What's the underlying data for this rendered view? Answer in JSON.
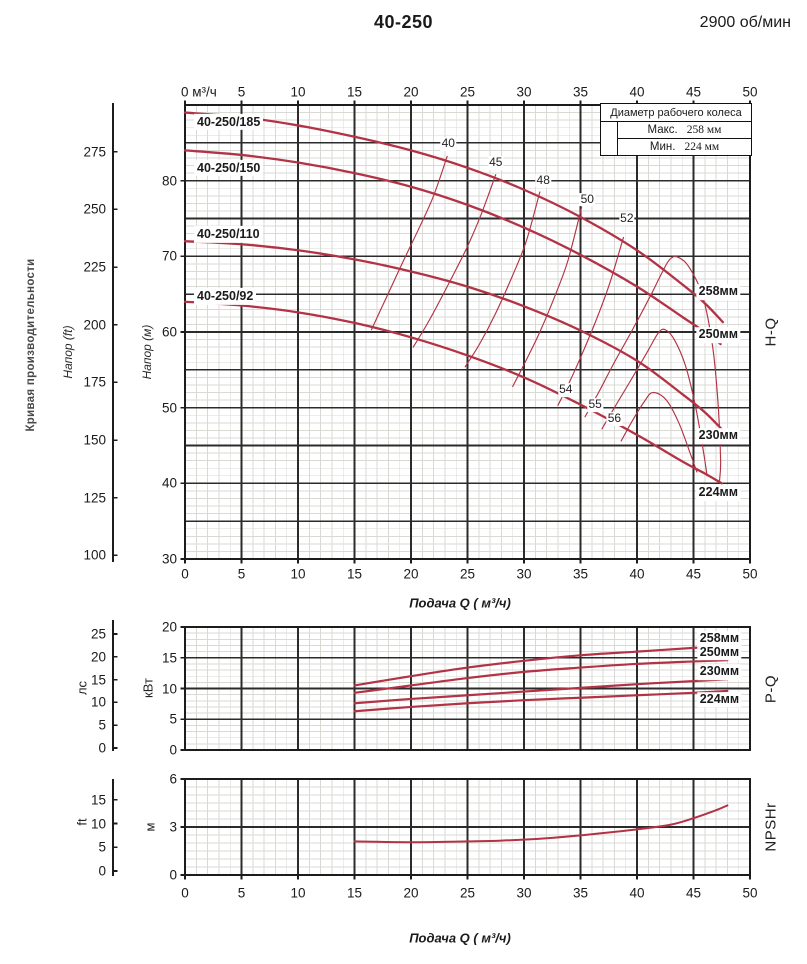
{
  "header": {
    "title": "40-250",
    "rpm": "2900 об/мин"
  },
  "colors": {
    "curve_red": "#b23345",
    "grid_major": "#2b2b2b",
    "grid_minor": "#dadad5",
    "text": "#1a1a1a"
  },
  "chart_data": {
    "main": {
      "type": "line",
      "right_label": "H-Q",
      "side_label": "Кривая производительности",
      "x_range": [
        0,
        50
      ],
      "y_range_m": [
        30,
        90
      ],
      "x_axis_top": {
        "zero_label": "0 м³/ч",
        "ticks": [
          0,
          5,
          10,
          15,
          20,
          25,
          30,
          35,
          40,
          45,
          50
        ]
      },
      "x_axis_bottom": {
        "title": "Подача Q ( м³/ч)",
        "ticks": [
          0,
          5,
          10,
          15,
          20,
          25,
          30,
          35,
          40,
          45,
          50
        ]
      },
      "y_axis_ft": {
        "title": "Напор (ft)",
        "ticks": [
          275,
          250,
          225,
          200,
          175,
          150,
          125,
          100
        ]
      },
      "y_axis_m": {
        "title": "Напор (м)",
        "ticks": [
          80,
          70,
          60,
          50,
          40,
          30
        ]
      },
      "legend": {
        "title": "Диаметр рабочего колеса",
        "rows": [
          {
            "label": "Макс.",
            "value": "258 мм"
          },
          {
            "label": "Мин.",
            "value": "224 мм"
          }
        ]
      },
      "curves": [
        {
          "name": "40-250/185",
          "diameter": "258мм",
          "label_pos": [
            0.8,
            87.8
          ],
          "dia_label_pos": [
            47.2,
            65.3
          ],
          "points": [
            [
              0,
              89
            ],
            [
              5,
              88.4
            ],
            [
              10,
              87.3
            ],
            [
              15,
              85.8
            ],
            [
              20,
              84
            ],
            [
              25,
              81.7
            ],
            [
              30,
              78.8
            ],
            [
              35,
              75.2
            ],
            [
              40,
              70.8
            ],
            [
              44,
              66.3
            ],
            [
              46,
              63.8
            ],
            [
              47.6,
              61.3
            ]
          ]
        },
        {
          "name": "40-250/150",
          "diameter": "250мм",
          "label_pos": [
            0.8,
            81.7
          ],
          "dia_label_pos": [
            47.2,
            59.6
          ],
          "points": [
            [
              0,
              84
            ],
            [
              5,
              83.4
            ],
            [
              10,
              82.4
            ],
            [
              15,
              81
            ],
            [
              20,
              79.2
            ],
            [
              25,
              76.8
            ],
            [
              30,
              73.8
            ],
            [
              35,
              70.2
            ],
            [
              40,
              66
            ],
            [
              44,
              62
            ],
            [
              46,
              60
            ],
            [
              47.4,
              58.4
            ]
          ]
        },
        {
          "name": "40-250/110",
          "diameter": "230мм",
          "label_pos": [
            0.8,
            72.9
          ],
          "dia_label_pos": [
            47.2,
            46.2
          ],
          "points": [
            [
              0,
              72
            ],
            [
              5,
              71.6
            ],
            [
              10,
              70.8
            ],
            [
              15,
              69.6
            ],
            [
              20,
              68
            ],
            [
              25,
              66
            ],
            [
              30,
              63.4
            ],
            [
              35,
              60.2
            ],
            [
              40,
              56.2
            ],
            [
              44,
              51.8
            ],
            [
              46,
              49.4
            ],
            [
              47.6,
              47
            ]
          ]
        },
        {
          "name": "40-250/92",
          "diameter": "224мм",
          "label_pos": [
            0.8,
            64.7
          ],
          "dia_label_pos": [
            47.2,
            38.7
          ],
          "points": [
            [
              0,
              64
            ],
            [
              5,
              63.5
            ],
            [
              10,
              62.6
            ],
            [
              15,
              61.2
            ],
            [
              20,
              59.3
            ],
            [
              25,
              56.9
            ],
            [
              30,
              54
            ],
            [
              35,
              50.4
            ],
            [
              40,
              46.4
            ],
            [
              44,
              42.9
            ],
            [
              46,
              41.3
            ],
            [
              47.5,
              40
            ]
          ]
        }
      ],
      "efficiency_curves": [
        {
          "value": "40",
          "label_pos": [
            23.3,
            84.8
          ],
          "points": [
            [
              16.5,
              60.3
            ],
            [
              17.8,
              64.5
            ],
            [
              19.2,
              69
            ],
            [
              20.8,
              74
            ],
            [
              22,
              78
            ],
            [
              23.2,
              83.2
            ]
          ]
        },
        {
          "value": "45",
          "label_pos": [
            27.5,
            82.3
          ],
          "points": [
            [
              20.2,
              58
            ],
            [
              21.6,
              61.5
            ],
            [
              23.2,
              66
            ],
            [
              24.9,
              71
            ],
            [
              26.2,
              75.5
            ],
            [
              27.5,
              80.8
            ]
          ]
        },
        {
          "value": "48",
          "label_pos": [
            31.7,
            80
          ],
          "points": [
            [
              24.8,
              55.4
            ],
            [
              26.1,
              58.5
            ],
            [
              27.5,
              62.5
            ],
            [
              29,
              67.5
            ],
            [
              30.2,
              72
            ],
            [
              31.4,
              78.5
            ]
          ]
        },
        {
          "value": "50",
          "label_pos": [
            35.6,
            77.5
          ],
          "points": [
            [
              29,
              52.8
            ],
            [
              30.1,
              56
            ],
            [
              31.4,
              60
            ],
            [
              32.8,
              65
            ],
            [
              33.9,
              69.5
            ],
            [
              35.1,
              76.5
            ]
          ]
        },
        {
          "value": "52",
          "label_pos": [
            39.1,
            75
          ],
          "points": [
            [
              33,
              50.3
            ],
            [
              34,
              53.3
            ],
            [
              35.2,
              57.3
            ],
            [
              36.5,
              62
            ],
            [
              37.6,
              66.5
            ],
            [
              38.8,
              72.5
            ]
          ]
        },
        {
          "value": "54",
          "label_pos": [
            33.7,
            52.3
          ],
          "points": [
            [
              35.4,
              48.8
            ],
            [
              36.6,
              52
            ],
            [
              38,
              56
            ],
            [
              39.6,
              60.3
            ],
            [
              41.2,
              64.8
            ],
            [
              42.2,
              67.8
            ],
            [
              42.9,
              69.6
            ],
            [
              43.6,
              69.9
            ],
            [
              44.6,
              68.6
            ],
            [
              45.8,
              64.8
            ],
            [
              46.7,
              58
            ],
            [
              47.2,
              50
            ],
            [
              47.4,
              43
            ],
            [
              47.3,
              40.3
            ]
          ]
        },
        {
          "value": "55",
          "label_pos": [
            36.3,
            50.3
          ],
          "points": [
            [
              36.9,
              47.2
            ],
            [
              38.2,
              50.5
            ],
            [
              39.6,
              54
            ],
            [
              41,
              57.6
            ],
            [
              41.9,
              59.9
            ],
            [
              42.5,
              60.3
            ],
            [
              43.3,
              59
            ],
            [
              44.3,
              55.5
            ],
            [
              45.2,
              50
            ],
            [
              45.9,
              44
            ],
            [
              46.2,
              41
            ]
          ]
        },
        {
          "value": "56",
          "label_pos": [
            38,
            48.5
          ],
          "points": [
            [
              38.6,
              45.6
            ],
            [
              39.6,
              48.3
            ],
            [
              40.6,
              50.7
            ],
            [
              41.4,
              52
            ],
            [
              42.6,
              51
            ],
            [
              43.7,
              48
            ],
            [
              44.7,
              44
            ],
            [
              45.3,
              41.5
            ]
          ]
        }
      ]
    },
    "power": {
      "type": "line",
      "right_label": "P-Q",
      "x_range": [
        0,
        50
      ],
      "y_range_kw": [
        0,
        20
      ],
      "y_axis_kw": {
        "title": "кВт",
        "ticks": [
          20,
          15,
          10,
          5,
          0
        ]
      },
      "y_axis_hp": {
        "title": "лс",
        "ticks": [
          25,
          20,
          15,
          10,
          5,
          0
        ]
      },
      "series": [
        {
          "diameter": "258мм",
          "dia_label_pos": [
            47.3,
            18
          ],
          "points": [
            [
              15,
              10.5
            ],
            [
              20,
              12
            ],
            [
              25,
              13.4
            ],
            [
              30,
              14.5
            ],
            [
              35,
              15.4
            ],
            [
              40,
              16
            ],
            [
              45,
              16.6
            ],
            [
              48,
              16.9
            ]
          ]
        },
        {
          "diameter": "250мм",
          "dia_label_pos": [
            47.3,
            15.8
          ],
          "points": [
            [
              15,
              9.3
            ],
            [
              20,
              10.5
            ],
            [
              25,
              11.7
            ],
            [
              30,
              12.7
            ],
            [
              35,
              13.4
            ],
            [
              40,
              14
            ],
            [
              45,
              14.4
            ],
            [
              48,
              14.6
            ]
          ]
        },
        {
          "diameter": "230мм",
          "dia_label_pos": [
            47.3,
            12.7
          ],
          "points": [
            [
              15,
              7.6
            ],
            [
              20,
              8.3
            ],
            [
              25,
              8.9
            ],
            [
              30,
              9.5
            ],
            [
              35,
              10.1
            ],
            [
              40,
              10.7
            ],
            [
              45,
              11.2
            ],
            [
              48,
              11.5
            ]
          ]
        },
        {
          "diameter": "224мм",
          "dia_label_pos": [
            47.3,
            8.2
          ],
          "points": [
            [
              15,
              6.3
            ],
            [
              20,
              7
            ],
            [
              25,
              7.6
            ],
            [
              30,
              8.1
            ],
            [
              35,
              8.5
            ],
            [
              40,
              8.9
            ],
            [
              45,
              9.3
            ],
            [
              48,
              9.6
            ]
          ]
        }
      ]
    },
    "npsh": {
      "type": "line",
      "right_label": "NPSHr",
      "x_range": [
        0,
        50
      ],
      "y_range_m": [
        0,
        6
      ],
      "x_axis": {
        "title": "Подача Q ( м³/ч)",
        "ticks": [
          0,
          5,
          10,
          15,
          20,
          25,
          30,
          35,
          40,
          45,
          50
        ]
      },
      "y_axis_m": {
        "title": "м",
        "ticks": [
          6,
          3,
          0
        ]
      },
      "y_axis_ft": {
        "title": "ft",
        "ticks": [
          15,
          10,
          5,
          0
        ]
      },
      "series": [
        {
          "name": "NPSHr",
          "points": [
            [
              15,
              2.1
            ],
            [
              20,
              2.05
            ],
            [
              25,
              2.1
            ],
            [
              28,
              2.15
            ],
            [
              32,
              2.3
            ],
            [
              36,
              2.55
            ],
            [
              40,
              2.85
            ],
            [
              43,
              3.15
            ],
            [
              45,
              3.55
            ],
            [
              47,
              4.05
            ],
            [
              48,
              4.35
            ]
          ]
        }
      ]
    }
  }
}
